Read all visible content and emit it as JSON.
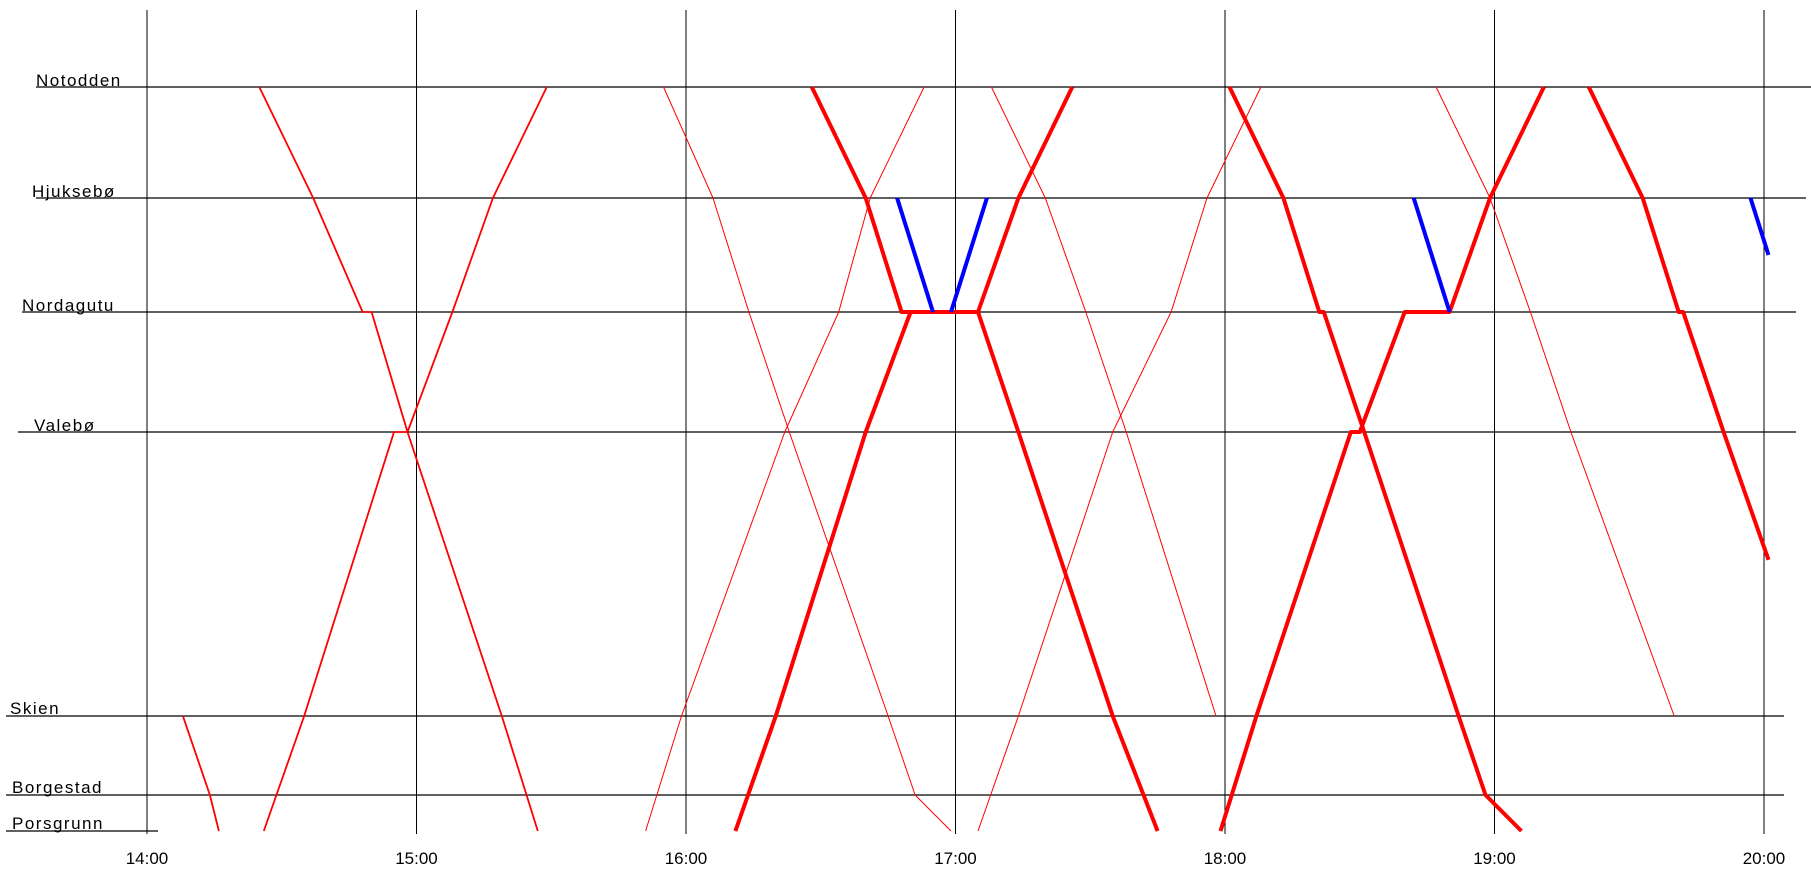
{
  "chart_data": {
    "type": "line",
    "x_ticks": [
      "14:00",
      "15:00",
      "16:00",
      "17:00",
      "18:00",
      "19:00",
      "20:00"
    ],
    "stations": [
      "Notodden",
      "Hjuksebø",
      "Nordagutu",
      "Valebø",
      "Skien",
      "Borgestad",
      "Porsgrunn"
    ],
    "series": [
      {
        "style": "thin",
        "color": "#ff0000",
        "points": [
          [
            "14:25",
            "Notodden"
          ],
          [
            "14:37",
            "Hjuksebø"
          ],
          [
            "14:48",
            "Nordagutu"
          ],
          [
            "14:50",
            "Nordagutu"
          ],
          [
            "14:58",
            "Valebø"
          ],
          [
            "15:19",
            "Skien"
          ],
          [
            "15:27",
            "Porsgrunn"
          ]
        ]
      },
      {
        "style": "thin",
        "color": "#ff0000",
        "points": [
          [
            "14:26",
            "Porsgrunn"
          ],
          [
            "14:35",
            "Skien"
          ],
          [
            "14:55",
            "Valebø"
          ],
          [
            "14:58",
            "Valebø"
          ],
          [
            "15:08",
            "Nordagutu"
          ],
          [
            "15:17",
            "Hjuksebø"
          ],
          [
            "15:29",
            "Notodden"
          ]
        ]
      },
      {
        "style": "thin",
        "color": "#ff0000",
        "points": [
          [
            "14:08",
            "Skien"
          ],
          [
            "14:14",
            "Borgestad"
          ],
          [
            "14:16",
            "Porsgrunn"
          ]
        ]
      },
      {
        "style": "hair",
        "color": "#ff0000",
        "points": [
          [
            "15:55",
            "Notodden"
          ],
          [
            "16:06",
            "Hjuksebø"
          ],
          [
            "16:14",
            "Nordagutu"
          ],
          [
            "16:23",
            "Valebø"
          ],
          [
            "16:45",
            "Skien"
          ],
          [
            "16:51",
            "Borgestad"
          ],
          [
            "16:59",
            "Porsgrunn"
          ]
        ]
      },
      {
        "style": "hair",
        "color": "#ff0000",
        "points": [
          [
            "15:51",
            "Porsgrunn"
          ],
          [
            "15:59",
            "Skien"
          ],
          [
            "16:22",
            "Valebø"
          ],
          [
            "16:34",
            "Nordagutu"
          ],
          [
            "16:41",
            "Hjuksebø"
          ],
          [
            "16:53",
            "Notodden"
          ]
        ]
      },
      {
        "style": "hair",
        "color": "#ff0000",
        "points": [
          [
            "17:08",
            "Notodden"
          ],
          [
            "17:20",
            "Hjuksebø"
          ],
          [
            "17:29",
            "Nordagutu"
          ],
          [
            "17:38",
            "Valebø"
          ],
          [
            "17:58",
            "Skien"
          ]
        ]
      },
      {
        "style": "hair",
        "color": "#ff0000",
        "points": [
          [
            "17:05",
            "Porsgrunn"
          ],
          [
            "17:14",
            "Skien"
          ],
          [
            "17:35",
            "Valebø"
          ],
          [
            "17:48",
            "Nordagutu"
          ],
          [
            "17:56",
            "Hjuksebø"
          ],
          [
            "18:08",
            "Notodden"
          ]
        ]
      },
      {
        "style": "hair",
        "color": "#ff0000",
        "points": [
          [
            "18:47",
            "Notodden"
          ],
          [
            "18:59",
            "Hjuksebø"
          ],
          [
            "19:08",
            "Nordagutu"
          ],
          [
            "19:17",
            "Valebø"
          ],
          [
            "19:40",
            "Skien"
          ]
        ]
      },
      {
        "style": "thick",
        "color": "#ff0000",
        "points": [
          [
            "16:28",
            "Notodden"
          ],
          [
            "16:40",
            "Hjuksebø"
          ],
          [
            "16:48",
            "Nordagutu"
          ],
          [
            "17:05",
            "Nordagutu"
          ],
          [
            "17:14",
            "Valebø"
          ],
          [
            "17:35",
            "Skien"
          ],
          [
            "17:45",
            "Porsgrunn"
          ]
        ]
      },
      {
        "style": "thick",
        "color": "#ff0000",
        "points": [
          [
            "16:11",
            "Porsgrunn"
          ],
          [
            "16:20",
            "Skien"
          ],
          [
            "16:40",
            "Valebø"
          ],
          [
            "16:50",
            "Nordagutu"
          ],
          [
            "17:05",
            "Nordagutu"
          ],
          [
            "17:14",
            "Hjuksebø"
          ],
          [
            "17:26",
            "Notodden"
          ]
        ]
      },
      {
        "style": "thick",
        "color": "#ff0000",
        "points": [
          [
            "18:01",
            "Notodden"
          ],
          [
            "18:13",
            "Hjuksebø"
          ],
          [
            "18:21",
            "Nordagutu"
          ],
          [
            "18:22",
            "Nordagutu"
          ],
          [
            "18:31",
            "Valebø"
          ],
          [
            "18:52",
            "Skien"
          ],
          [
            "18:58",
            "Borgestad"
          ],
          [
            "19:06",
            "Porsgrunn"
          ]
        ]
      },
      {
        "style": "thick",
        "color": "#ff0000",
        "points": [
          [
            "17:59",
            "Porsgrunn"
          ],
          [
            "18:07",
            "Skien"
          ],
          [
            "18:28",
            "Valebø"
          ],
          [
            "18:30",
            "Valebø"
          ],
          [
            "18:40",
            "Nordagutu"
          ],
          [
            "18:50",
            "Nordagutu"
          ],
          [
            "18:59",
            "Hjuksebø"
          ],
          [
            "19:11",
            "Notodden"
          ]
        ]
      },
      {
        "style": "thick",
        "color": "#ff0000",
        "points": [
          [
            "19:21",
            "Notodden"
          ],
          [
            "19:33",
            "Hjuksebø"
          ],
          [
            "19:41",
            "Nordagutu"
          ],
          [
            "19:42",
            "Nordagutu"
          ],
          [
            "19:51",
            "Valebø"
          ],
          [
            "20:01",
            "Valebø/Skien:0.45"
          ]
        ]
      },
      {
        "style": "thick",
        "color": "#0000ff",
        "points": [
          [
            "16:47",
            "Hjuksebø"
          ],
          [
            "16:55",
            "Nordagutu"
          ]
        ]
      },
      {
        "style": "thick",
        "color": "#0000ff",
        "points": [
          [
            "16:59",
            "Nordagutu"
          ],
          [
            "17:07",
            "Hjuksebø"
          ]
        ]
      },
      {
        "style": "thick",
        "color": "#0000ff",
        "points": [
          [
            "18:42",
            "Hjuksebø"
          ],
          [
            "18:50",
            "Nordagutu"
          ]
        ]
      },
      {
        "style": "thick",
        "color": "#0000ff",
        "points": [
          [
            "19:57",
            "Hjuksebø"
          ],
          [
            "20:01",
            "Hjuksebø/Nordagutu:0.5"
          ]
        ]
      }
    ]
  }
}
